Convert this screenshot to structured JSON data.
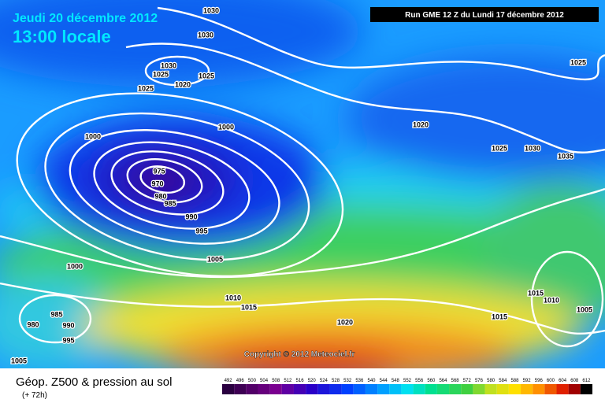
{
  "header": {
    "date": "Jeudi 20 décembre 2012",
    "time": "13:00 locale",
    "run": "Run GME 12 Z du Lundi 17 décembre 2012"
  },
  "copyright": "Copyright © 2012 Meteociel.fr",
  "legend": {
    "title": "Géop. Z500 & pression au sol",
    "subtitle": "(+ 72h)",
    "scale": [
      492,
      496,
      500,
      504,
      508,
      512,
      516,
      520,
      524,
      528,
      532,
      536,
      540,
      544,
      548,
      552,
      556,
      560,
      564,
      568,
      572,
      576,
      580,
      584,
      588,
      592,
      596,
      600,
      604,
      608,
      612
    ]
  },
  "isobar_labels": [
    1030,
    1030,
    1030,
    1025,
    1020,
    1025,
    1025,
    1000,
    1000,
    975,
    970,
    980,
    985,
    990,
    995,
    1005,
    1000,
    985,
    980,
    990,
    995,
    1005,
    1010,
    1015,
    1020,
    1020,
    1025,
    1030,
    1035,
    1025,
    1015,
    1010,
    1015,
    1005
  ]
}
